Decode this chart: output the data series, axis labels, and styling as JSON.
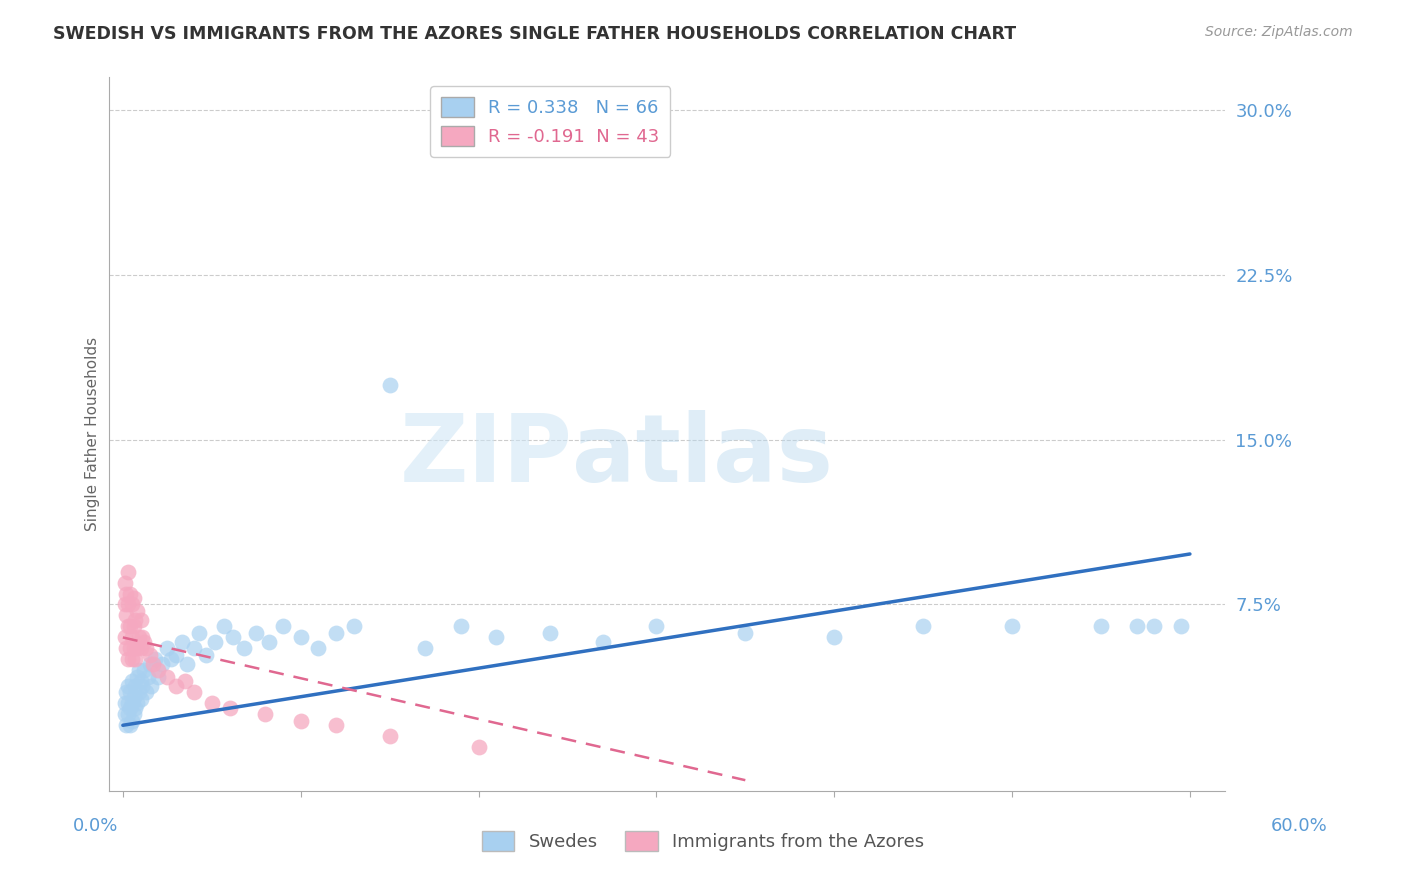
{
  "title": "SWEDISH VS IMMIGRANTS FROM THE AZORES SINGLE FATHER HOUSEHOLDS CORRELATION CHART",
  "source": "Source: ZipAtlas.com",
  "ylabel": "Single Father Households",
  "legend_blue_r": "R = 0.338",
  "legend_blue_n": "N = 66",
  "legend_pink_r": "R = -0.191",
  "legend_pink_n": "N = 43",
  "blue_color": "#A8D0F0",
  "pink_color": "#F5A8C0",
  "blue_line_color": "#3070C0",
  "pink_line_color": "#E06890",
  "background_color": "#ffffff",
  "grid_color": "#cccccc",
  "title_color": "#333333",
  "axis_label_color": "#5B9BD5",
  "ytick_vals": [
    0.0,
    0.075,
    0.15,
    0.225,
    0.3
  ],
  "ytick_labels": [
    "",
    "7.5%",
    "15.0%",
    "22.5%",
    "30.0%"
  ],
  "xlim": [
    0.0,
    0.6
  ],
  "ylim": [
    -0.01,
    0.315
  ],
  "swedes_x": [
    0.001,
    0.001,
    0.002,
    0.002,
    0.003,
    0.003,
    0.003,
    0.004,
    0.004,
    0.004,
    0.005,
    0.005,
    0.005,
    0.006,
    0.006,
    0.007,
    0.007,
    0.008,
    0.008,
    0.009,
    0.009,
    0.01,
    0.01,
    0.011,
    0.012,
    0.013,
    0.014,
    0.015,
    0.016,
    0.018,
    0.02,
    0.022,
    0.025,
    0.027,
    0.03,
    0.033,
    0.036,
    0.04,
    0.043,
    0.047,
    0.052,
    0.057,
    0.062,
    0.068,
    0.075,
    0.082,
    0.09,
    0.1,
    0.11,
    0.12,
    0.13,
    0.15,
    0.17,
    0.19,
    0.21,
    0.24,
    0.27,
    0.3,
    0.35,
    0.4,
    0.45,
    0.5,
    0.55,
    0.57,
    0.58,
    0.595
  ],
  "swedes_y": [
    0.025,
    0.03,
    0.02,
    0.035,
    0.025,
    0.03,
    0.038,
    0.02,
    0.028,
    0.035,
    0.022,
    0.03,
    0.04,
    0.025,
    0.033,
    0.028,
    0.038,
    0.03,
    0.042,
    0.035,
    0.045,
    0.032,
    0.04,
    0.038,
    0.045,
    0.035,
    0.042,
    0.048,
    0.038,
    0.05,
    0.042,
    0.048,
    0.055,
    0.05,
    0.052,
    0.058,
    0.048,
    0.055,
    0.062,
    0.052,
    0.058,
    0.065,
    0.06,
    0.055,
    0.062,
    0.058,
    0.065,
    0.06,
    0.055,
    0.062,
    0.065,
    0.175,
    0.055,
    0.065,
    0.06,
    0.062,
    0.058,
    0.065,
    0.062,
    0.06,
    0.065,
    0.065,
    0.065,
    0.065,
    0.065,
    0.065
  ],
  "azores_x": [
    0.001,
    0.001,
    0.001,
    0.002,
    0.002,
    0.002,
    0.003,
    0.003,
    0.003,
    0.003,
    0.004,
    0.004,
    0.004,
    0.005,
    0.005,
    0.005,
    0.006,
    0.006,
    0.006,
    0.007,
    0.007,
    0.008,
    0.008,
    0.009,
    0.01,
    0.01,
    0.011,
    0.012,
    0.013,
    0.015,
    0.017,
    0.02,
    0.025,
    0.03,
    0.035,
    0.04,
    0.05,
    0.06,
    0.08,
    0.1,
    0.12,
    0.15,
    0.2
  ],
  "azores_y": [
    0.06,
    0.075,
    0.085,
    0.055,
    0.07,
    0.08,
    0.05,
    0.065,
    0.075,
    0.09,
    0.055,
    0.065,
    0.08,
    0.05,
    0.06,
    0.075,
    0.055,
    0.065,
    0.078,
    0.05,
    0.068,
    0.055,
    0.072,
    0.06,
    0.055,
    0.068,
    0.06,
    0.058,
    0.055,
    0.052,
    0.048,
    0.045,
    0.042,
    0.038,
    0.04,
    0.035,
    0.03,
    0.028,
    0.025,
    0.022,
    0.02,
    0.015,
    0.01
  ],
  "blue_line_x": [
    0.0,
    0.6
  ],
  "blue_line_y": [
    0.02,
    0.098
  ],
  "pink_line_x": [
    0.0,
    0.35
  ],
  "pink_line_y": [
    0.06,
    -0.005
  ],
  "watermark_text": "ZIPatlas",
  "watermark_zip_color": "#d8eef8",
  "watermark_atlas_color": "#c5dff0"
}
